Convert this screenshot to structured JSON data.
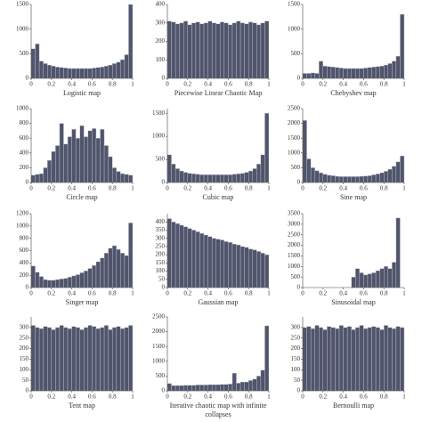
{
  "chart_data": [
    {
      "type": "histogram",
      "title": "Logistic map",
      "color": "#50556b",
      "xlim": [
        0,
        1
      ],
      "xticks": [
        0,
        0.2,
        0.4,
        0.6,
        0.8,
        1
      ],
      "ylim": [
        0,
        1500
      ],
      "yticks": [
        0,
        500,
        1000,
        1500
      ],
      "bins": [
        0,
        0.04,
        0.08,
        0.12,
        0.16,
        0.2,
        0.24,
        0.28,
        0.32,
        0.36,
        0.4,
        0.44,
        0.48,
        0.52,
        0.56,
        0.6,
        0.64,
        0.68,
        0.72,
        0.76,
        0.8,
        0.84,
        0.88,
        0.92,
        0.96,
        1
      ],
      "values": [
        600,
        700,
        350,
        300,
        270,
        250,
        230,
        220,
        210,
        200,
        200,
        200,
        200,
        200,
        200,
        210,
        220,
        230,
        250,
        270,
        300,
        330,
        380,
        480,
        1500
      ]
    },
    {
      "type": "histogram",
      "title": "Piecewise Linear Chaotic Map",
      "color": "#50556b",
      "xlim": [
        0,
        1
      ],
      "xticks": [
        0,
        0.2,
        0.4,
        0.6,
        0.8,
        1
      ],
      "ylim": [
        0,
        400
      ],
      "yticks": [
        0,
        100,
        200,
        300,
        400
      ],
      "bins": [
        0,
        0.04,
        0.08,
        0.12,
        0.16,
        0.2,
        0.24,
        0.28,
        0.32,
        0.36,
        0.4,
        0.44,
        0.48,
        0.52,
        0.56,
        0.6,
        0.64,
        0.68,
        0.72,
        0.76,
        0.8,
        0.84,
        0.88,
        0.92,
        0.96,
        1
      ],
      "values": [
        310,
        305,
        295,
        300,
        310,
        290,
        300,
        305,
        295,
        300,
        310,
        300,
        295,
        305,
        300,
        290,
        300,
        310,
        300,
        295,
        305,
        300,
        290,
        300,
        310
      ]
    },
    {
      "type": "histogram",
      "title": "Chebyshev map",
      "color": "#50556b",
      "xlim": [
        0,
        1
      ],
      "xticks": [
        0,
        0.2,
        0.4,
        0.6,
        0.8,
        1
      ],
      "ylim": [
        0,
        1500
      ],
      "yticks": [
        0,
        500,
        1000,
        1500
      ],
      "bins": [
        0,
        0.04,
        0.08,
        0.12,
        0.16,
        0.2,
        0.24,
        0.28,
        0.32,
        0.36,
        0.4,
        0.44,
        0.48,
        0.52,
        0.56,
        0.6,
        0.64,
        0.68,
        0.72,
        0.76,
        0.8,
        0.84,
        0.88,
        0.92,
        0.96,
        1
      ],
      "values": [
        100,
        100,
        110,
        100,
        350,
        250,
        240,
        230,
        220,
        210,
        200,
        200,
        200,
        200,
        200,
        210,
        220,
        230,
        240,
        250,
        270,
        300,
        350,
        450,
        1300
      ]
    },
    {
      "type": "histogram",
      "title": "Circle map",
      "color": "#50556b",
      "xlim": [
        0,
        1
      ],
      "xticks": [
        0,
        0.2,
        0.4,
        0.6,
        0.8,
        1
      ],
      "ylim": [
        0,
        1000
      ],
      "yticks": [
        0,
        200,
        400,
        600,
        800,
        1000
      ],
      "bins": [
        0,
        0.04,
        0.08,
        0.12,
        0.16,
        0.2,
        0.24,
        0.28,
        0.32,
        0.36,
        0.4,
        0.44,
        0.48,
        0.52,
        0.56,
        0.6,
        0.64,
        0.68,
        0.72,
        0.76,
        0.8,
        0.84,
        0.88,
        0.92,
        0.96,
        1
      ],
      "values": [
        100,
        110,
        120,
        200,
        300,
        420,
        500,
        800,
        520,
        620,
        720,
        600,
        770,
        620,
        700,
        730,
        600,
        720,
        500,
        350,
        200,
        150,
        120,
        110,
        100
      ]
    },
    {
      "type": "histogram",
      "title": "Cubic map",
      "color": "#50556b",
      "xlim": [
        0,
        1
      ],
      "xticks": [
        0,
        0.2,
        0.4,
        0.6,
        0.8,
        1
      ],
      "ylim": [
        0,
        1600
      ],
      "yticks": [
        0,
        500,
        1000,
        1500
      ],
      "bins": [
        0,
        0.04,
        0.08,
        0.12,
        0.16,
        0.2,
        0.24,
        0.28,
        0.32,
        0.36,
        0.4,
        0.44,
        0.48,
        0.52,
        0.56,
        0.6,
        0.64,
        0.68,
        0.72,
        0.76,
        0.8,
        0.84,
        0.88,
        0.92,
        0.96,
        1
      ],
      "values": [
        600,
        400,
        300,
        250,
        220,
        200,
        190,
        180,
        170,
        170,
        170,
        170,
        170,
        170,
        170,
        170,
        180,
        190,
        200,
        220,
        250,
        300,
        400,
        600,
        1500
      ]
    },
    {
      "type": "histogram",
      "title": "Sine map",
      "color": "#50556b",
      "xlim": [
        0,
        1
      ],
      "xticks": [
        0,
        0.2,
        0.4,
        0.6,
        0.8,
        1
      ],
      "ylim": [
        0,
        2500
      ],
      "yticks": [
        0,
        500,
        1000,
        1500,
        2000,
        2500
      ],
      "bins": [
        0,
        0.04,
        0.08,
        0.12,
        0.16,
        0.2,
        0.24,
        0.28,
        0.32,
        0.36,
        0.4,
        0.44,
        0.48,
        0.52,
        0.56,
        0.6,
        0.64,
        0.68,
        0.72,
        0.76,
        0.8,
        0.84,
        0.88,
        0.92,
        0.96,
        1
      ],
      "values": [
        2100,
        800,
        500,
        400,
        330,
        280,
        250,
        230,
        210,
        200,
        200,
        200,
        200,
        200,
        210,
        220,
        230,
        260,
        290,
        330,
        380,
        450,
        550,
        700,
        900
      ]
    },
    {
      "type": "histogram",
      "title": "Singer map",
      "color": "#50556b",
      "xlim": [
        0,
        1
      ],
      "xticks": [
        0,
        0.2,
        0.4,
        0.6,
        0.8,
        1
      ],
      "ylim": [
        0,
        1200
      ],
      "yticks": [
        0,
        200,
        400,
        600,
        800,
        1000,
        1200
      ],
      "bins": [
        0,
        0.04,
        0.08,
        0.12,
        0.16,
        0.2,
        0.24,
        0.28,
        0.32,
        0.36,
        0.4,
        0.44,
        0.48,
        0.52,
        0.56,
        0.6,
        0.64,
        0.68,
        0.72,
        0.76,
        0.8,
        0.84,
        0.88,
        0.92,
        0.96,
        1
      ],
      "values": [
        350,
        250,
        180,
        130,
        120,
        120,
        130,
        140,
        150,
        170,
        190,
        210,
        240,
        270,
        310,
        360,
        420,
        480,
        560,
        640,
        680,
        620,
        560,
        520,
        1050
      ]
    },
    {
      "type": "histogram",
      "title": "Gaussian map",
      "color": "#50556b",
      "xlim": [
        0,
        1
      ],
      "xticks": [
        0,
        0.2,
        0.4,
        0.6,
        0.8,
        1
      ],
      "ylim": [
        0,
        450
      ],
      "yticks": [
        0,
        50,
        100,
        150,
        200,
        250,
        300,
        350,
        400
      ],
      "bins": [
        0,
        0.04,
        0.08,
        0.12,
        0.16,
        0.2,
        0.24,
        0.28,
        0.32,
        0.36,
        0.4,
        0.44,
        0.48,
        0.52,
        0.56,
        0.6,
        0.64,
        0.68,
        0.72,
        0.76,
        0.8,
        0.84,
        0.88,
        0.92,
        0.96,
        1
      ],
      "values": [
        420,
        400,
        390,
        380,
        370,
        360,
        350,
        340,
        330,
        320,
        310,
        300,
        295,
        290,
        280,
        275,
        265,
        260,
        250,
        245,
        235,
        230,
        220,
        210,
        200
      ]
    },
    {
      "type": "histogram",
      "title": "Sinusoidal map",
      "color": "#50556b",
      "xlim": [
        0,
        1
      ],
      "xticks": [
        0,
        0.2,
        0.4,
        0.6,
        0.8,
        1
      ],
      "ylim": [
        0,
        3500
      ],
      "yticks": [
        0,
        500,
        1000,
        1500,
        2000,
        2500,
        3000,
        3500
      ],
      "bins": [
        0,
        0.04,
        0.08,
        0.12,
        0.16,
        0.2,
        0.24,
        0.28,
        0.32,
        0.36,
        0.4,
        0.44,
        0.48,
        0.52,
        0.56,
        0.6,
        0.64,
        0.68,
        0.72,
        0.76,
        0.8,
        0.84,
        0.88,
        0.92,
        0.96,
        1
      ],
      "values": [
        0,
        0,
        0,
        0,
        0,
        0,
        0,
        0,
        0,
        0,
        0,
        0,
        500,
        900,
        700,
        600,
        650,
        700,
        800,
        900,
        1000,
        900,
        1200,
        3300,
        0
      ]
    },
    {
      "type": "histogram",
      "title": "Tent map",
      "color": "#50556b",
      "xlim": [
        0,
        1
      ],
      "xticks": [
        0,
        0.2,
        0.4,
        0.6,
        0.8,
        1
      ],
      "ylim": [
        0,
        350
      ],
      "yticks": [
        0,
        50,
        100,
        150,
        200,
        250,
        300
      ],
      "bins": [
        0,
        0.04,
        0.08,
        0.12,
        0.16,
        0.2,
        0.24,
        0.28,
        0.32,
        0.36,
        0.4,
        0.44,
        0.48,
        0.52,
        0.56,
        0.6,
        0.64,
        0.68,
        0.72,
        0.76,
        0.8,
        0.84,
        0.88,
        0.92,
        0.96,
        1
      ],
      "values": [
        310,
        300,
        295,
        305,
        300,
        290,
        300,
        310,
        300,
        295,
        305,
        300,
        290,
        300,
        310,
        305,
        295,
        300,
        310,
        290,
        300,
        305,
        295,
        300,
        310
      ]
    },
    {
      "type": "histogram",
      "title": "Iterative chaotic map with infinite collapses",
      "color": "#50556b",
      "xlim": [
        0,
        1
      ],
      "xticks": [
        0,
        0.2,
        0.4,
        0.6,
        0.8,
        1
      ],
      "ylim": [
        0,
        2500
      ],
      "yticks": [
        0,
        500,
        1000,
        1500,
        2000,
        2500
      ],
      "bins": [
        0,
        0.04,
        0.08,
        0.12,
        0.16,
        0.2,
        0.24,
        0.28,
        0.32,
        0.36,
        0.4,
        0.44,
        0.48,
        0.52,
        0.56,
        0.6,
        0.64,
        0.68,
        0.72,
        0.76,
        0.8,
        0.84,
        0.88,
        0.92,
        0.96,
        1
      ],
      "values": [
        250,
        180,
        180,
        180,
        190,
        190,
        190,
        200,
        200,
        200,
        210,
        210,
        210,
        220,
        220,
        230,
        600,
        260,
        300,
        300,
        350,
        400,
        500,
        700,
        2200
      ]
    },
    {
      "type": "histogram",
      "title": "Bernoulli map",
      "color": "#50556b",
      "xlim": [
        0,
        1
      ],
      "xticks": [
        0,
        0.2,
        0.4,
        0.6,
        0.8,
        1
      ],
      "ylim": [
        0,
        350
      ],
      "yticks": [
        0,
        50,
        100,
        150,
        200,
        250,
        300
      ],
      "bins": [
        0,
        0.04,
        0.08,
        0.12,
        0.16,
        0.2,
        0.24,
        0.28,
        0.32,
        0.36,
        0.4,
        0.44,
        0.48,
        0.52,
        0.56,
        0.6,
        0.64,
        0.68,
        0.72,
        0.76,
        0.8,
        0.84,
        0.88,
        0.92,
        0.96,
        1
      ],
      "values": [
        300,
        305,
        295,
        310,
        300,
        290,
        305,
        300,
        295,
        310,
        300,
        305,
        290,
        300,
        310,
        295,
        300,
        305,
        300,
        290,
        310,
        300,
        295,
        305,
        300
      ]
    }
  ]
}
